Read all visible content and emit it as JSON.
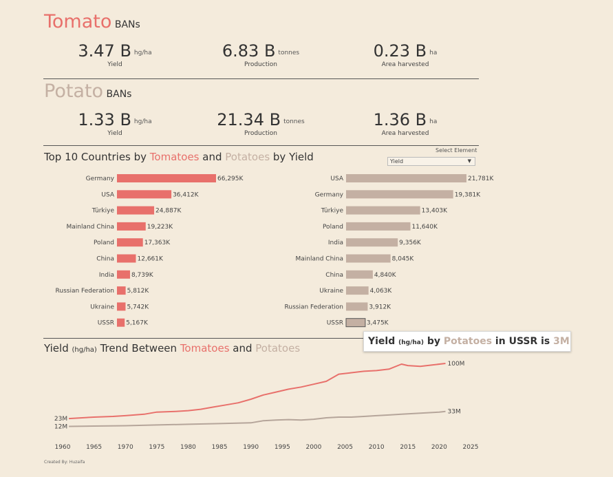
{
  "tomato_bans": {
    "title_word": "Tomato",
    "title_rest": "BANs",
    "items": [
      {
        "value": "3.47 B",
        "unit": "hg/ha",
        "label": "Yield"
      },
      {
        "value": "6.83 B",
        "unit": "tonnes",
        "label": "Production"
      },
      {
        "value": "0.23 B",
        "unit": "ha",
        "label": "Area harvested"
      }
    ]
  },
  "potato_bans": {
    "title_word": "Potato",
    "title_rest": "BANs",
    "items": [
      {
        "value": "1.33 B",
        "unit": "hg/ha",
        "label": "Yield"
      },
      {
        "value": "21.34 B",
        "unit": "tonnes",
        "label": "Production"
      },
      {
        "value": "1.36 B",
        "unit": "ha",
        "label": "Area harvested"
      }
    ]
  },
  "top10": {
    "title_a": "Top 10 Countries by ",
    "title_tomatoes": "Tomatoes",
    "title_and": " and ",
    "title_potatoes": "Potatoes",
    "title_b": " by Yield",
    "select_label": "Select Element",
    "select_value": "Yield"
  },
  "trend": {
    "title_a": "Yield ",
    "title_unit": "(hg/ha)",
    "title_b": " Trend Between ",
    "title_tomatoes": "Tomatoes",
    "title_and": " and ",
    "title_potatoes": "Potatoes"
  },
  "tooltip": {
    "a": "Yield ",
    "unit": "(hg/ha)",
    "b": " by ",
    "crop": "Potatoes",
    "c": " in USSR is ",
    "value": "3M"
  },
  "credit": "Created By: Huzaifa",
  "colors": {
    "tomato": "#e8706b",
    "potato": "#c4b0a3"
  },
  "chart_data": [
    {
      "type": "bar",
      "name": "Tomatoes",
      "categories": [
        "Germany",
        "USA",
        "Türkiye",
        "Mainland China",
        "Poland",
        "China",
        "India",
        "Russian Federation",
        "Ukraine",
        "USSR"
      ],
      "values": [
        66295,
        36412,
        24887,
        19223,
        17363,
        12661,
        8739,
        5812,
        5742,
        5167
      ],
      "labels": [
        "66,295K",
        "36,412K",
        "24,887K",
        "19,223K",
        "17,363K",
        "12,661K",
        "8,739K",
        "5,812K",
        "5,742K",
        "5,167K"
      ]
    },
    {
      "type": "bar",
      "name": "Potatoes",
      "categories": [
        "USA",
        "Germany",
        "Türkiye",
        "Poland",
        "India",
        "Mainland China",
        "China",
        "Ukraine",
        "Russian Federation",
        "USSR"
      ],
      "values": [
        21781,
        19381,
        13403,
        11640,
        9356,
        8045,
        4840,
        4063,
        3912,
        3475
      ],
      "labels": [
        "21,781K",
        "19,381K",
        "13,403K",
        "11,640K",
        "9,356K",
        "8,045K",
        "4,840K",
        "4,063K",
        "3,912K",
        "3,475K"
      ]
    },
    {
      "type": "line",
      "xlim": [
        1960,
        2025
      ],
      "xticks": [
        1960,
        1965,
        1970,
        1975,
        1980,
        1985,
        1990,
        1995,
        2000,
        2005,
        2010,
        2015,
        2020,
        2025
      ],
      "ylim": [
        0,
        100
      ],
      "series": [
        {
          "name": "Tomatoes",
          "start_label": "23M",
          "end_label": "100M",
          "x": [
            1961,
            1965,
            1968,
            1970,
            1973,
            1975,
            1978,
            1980,
            1982,
            1984,
            1986,
            1988,
            1990,
            1992,
            1994,
            1996,
            1998,
            2000,
            2002,
            2004,
            2006,
            2008,
            2010,
            2012,
            2014,
            2015,
            2017,
            2019,
            2021
          ],
          "y": [
            23,
            25,
            26,
            27,
            29,
            32,
            33,
            34,
            36,
            39,
            42,
            45,
            50,
            56,
            60,
            64,
            67,
            71,
            75,
            85,
            87,
            89,
            90,
            92,
            99,
            97,
            96,
            98,
            100
          ]
        },
        {
          "name": "Potatoes",
          "start_label": "12M",
          "end_label": "33M",
          "x": [
            1961,
            1965,
            1970,
            1975,
            1980,
            1985,
            1990,
            1992,
            1994,
            1996,
            1998,
            2000,
            2002,
            2004,
            2006,
            2008,
            2010,
            2012,
            2014,
            2016,
            2018,
            2020,
            2021
          ],
          "y": [
            12,
            12.5,
            13,
            14,
            15,
            16,
            17,
            20,
            21,
            21.5,
            21,
            22,
            24,
            25,
            25,
            26,
            27,
            28,
            29,
            30,
            31,
            32,
            33
          ]
        }
      ]
    }
  ]
}
